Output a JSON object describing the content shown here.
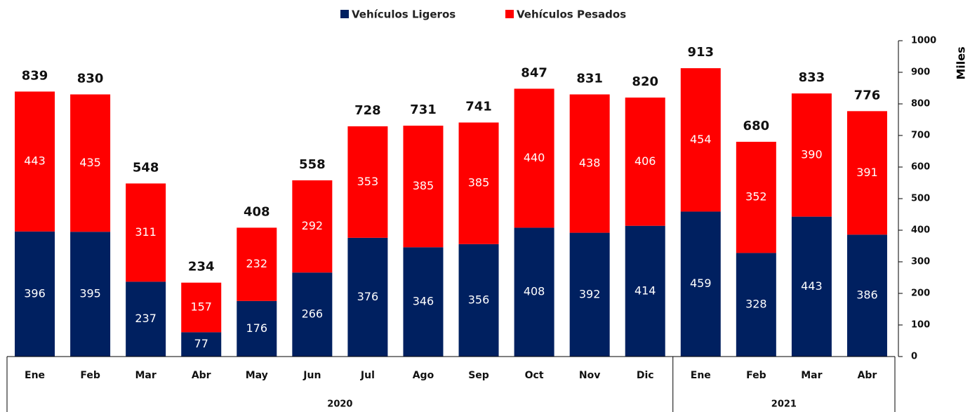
{
  "chart_data": {
    "type": "stacked_bar",
    "categories": [
      "Ene",
      "Feb",
      "Mar",
      "Abr",
      "May",
      "Jun",
      "Jul",
      "Ago",
      "Sep",
      "Oct",
      "Nov",
      "Dic",
      "Ene",
      "Feb",
      "Mar",
      "Abr"
    ],
    "years": [
      "2020",
      "2020",
      "2020",
      "2020",
      "2020",
      "2020",
      "2020",
      "2020",
      "2020",
      "2020",
      "2020",
      "2020",
      "2021",
      "2021",
      "2021",
      "2021"
    ],
    "series": [
      {
        "name": "Vehículos Ligeros",
        "color": "#002060",
        "values": [
          396,
          395,
          237,
          77,
          176,
          266,
          376,
          346,
          356,
          408,
          392,
          414,
          459,
          328,
          443,
          386
        ]
      },
      {
        "name": "Vehículos Pesados",
        "color": "#ff0000",
        "values": [
          443,
          435,
          311,
          157,
          232,
          292,
          353,
          385,
          385,
          440,
          438,
          406,
          454,
          352,
          390,
          391
        ]
      }
    ],
    "totals": [
      839,
      830,
      548,
      234,
      408,
      558,
      728,
      731,
      741,
      847,
      831,
      820,
      913,
      680,
      833,
      776
    ],
    "y_label": "Miles",
    "ylim": [
      0,
      1000
    ],
    "yticks": [
      0,
      100,
      200,
      300,
      400,
      500,
      600,
      700,
      800,
      900,
      1000
    ]
  }
}
